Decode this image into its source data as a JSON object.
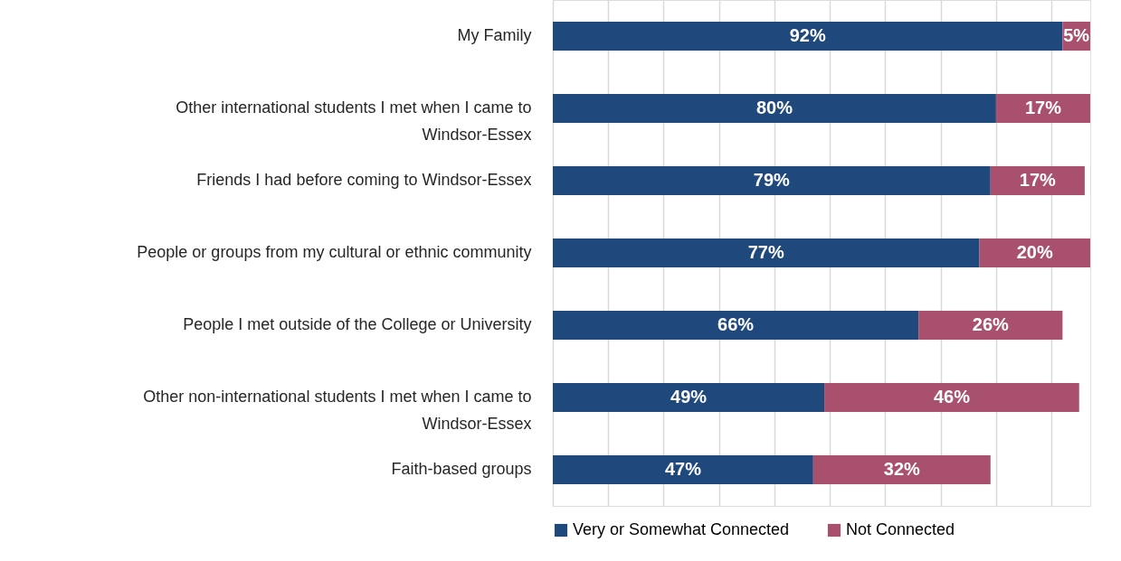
{
  "chart_data": {
    "type": "bar",
    "orientation": "horizontal",
    "stacked": true,
    "categories": [
      "My Family",
      "Other international students I met when I came to Windsor-Essex",
      "Friends I had before coming to Windsor-Essex",
      "People or groups from my cultural or ethnic community",
      "People I met outside of the College or University",
      "Other non-international students I met when I came to Windsor-Essex",
      "Faith-based groups"
    ],
    "series": [
      {
        "name": "Very or Somewhat Connected",
        "color": "#1f497d",
        "values": [
          92,
          80,
          79,
          77,
          66,
          49,
          47
        ],
        "value_labels": [
          "92%",
          "80%",
          "79%",
          "77%",
          "66%",
          "49%",
          "47%"
        ]
      },
      {
        "name": "Not Connected",
        "color": "#a9506e",
        "values": [
          5,
          17,
          17,
          20,
          26,
          46,
          32
        ],
        "value_labels": [
          "5%",
          "17%",
          "17%",
          "20%",
          "26%",
          "46%",
          "32%"
        ]
      }
    ],
    "xlim": [
      0,
      97
    ],
    "xticks": [
      {
        "value": 0,
        "label": null
      },
      {
        "value": 10,
        "label": null
      },
      {
        "value": 20,
        "label": null
      },
      {
        "value": 30,
        "label": null
      },
      {
        "value": 40,
        "label": null
      },
      {
        "value": 50,
        "label": null
      },
      {
        "value": 60,
        "label": null
      },
      {
        "value": 70,
        "label": null
      },
      {
        "value": 80,
        "label": null
      },
      {
        "value": 90,
        "label": null
      }
    ],
    "grid": "x",
    "legend": "bottom",
    "tick_labels": "y"
  }
}
